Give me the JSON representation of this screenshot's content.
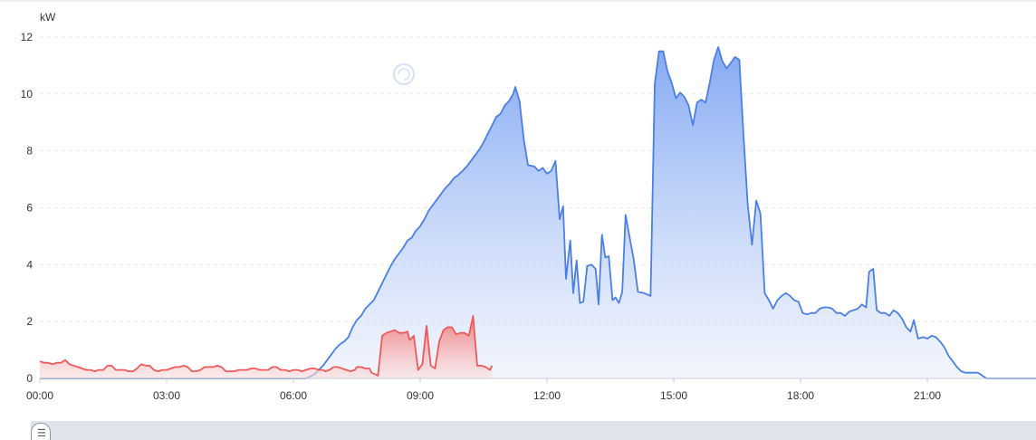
{
  "chart_data": {
    "type": "area",
    "ylabel": "kW",
    "ylim": [
      0,
      12
    ],
    "yticks": [
      "0",
      "2",
      "4",
      "6",
      "8",
      "10",
      "12"
    ],
    "xlim": [
      0,
      23.83
    ],
    "xticks": [
      {
        "label": "00:00",
        "value": 0
      },
      {
        "label": "03:00",
        "value": 3
      },
      {
        "label": "06:00",
        "value": 6
      },
      {
        "label": "09:00",
        "value": 9
      },
      {
        "label": "12:00",
        "value": 12
      },
      {
        "label": "15:00",
        "value": 15
      },
      {
        "label": "18:00",
        "value": 18
      },
      {
        "label": "21:00",
        "value": 21
      }
    ],
    "grid": true,
    "series": [
      {
        "color": "#4a7fe6",
        "points": [
          [
            0,
            0
          ],
          [
            6.3,
            0
          ],
          [
            6.5,
            0.15
          ],
          [
            6.7,
            0.45
          ],
          [
            6.8,
            0.65
          ],
          [
            6.9,
            0.85
          ],
          [
            7.0,
            1.05
          ],
          [
            7.1,
            1.2
          ],
          [
            7.2,
            1.3
          ],
          [
            7.3,
            1.45
          ],
          [
            7.4,
            1.8
          ],
          [
            7.5,
            2.05
          ],
          [
            7.6,
            2.2
          ],
          [
            7.7,
            2.45
          ],
          [
            7.8,
            2.6
          ],
          [
            7.9,
            2.75
          ],
          [
            8.0,
            3.05
          ],
          [
            8.1,
            3.35
          ],
          [
            8.2,
            3.65
          ],
          [
            8.3,
            3.95
          ],
          [
            8.4,
            4.2
          ],
          [
            8.5,
            4.4
          ],
          [
            8.6,
            4.6
          ],
          [
            8.7,
            4.85
          ],
          [
            8.8,
            4.95
          ],
          [
            8.9,
            5.2
          ],
          [
            9.0,
            5.35
          ],
          [
            9.1,
            5.6
          ],
          [
            9.2,
            5.9
          ],
          [
            9.3,
            6.1
          ],
          [
            9.4,
            6.3
          ],
          [
            9.5,
            6.5
          ],
          [
            9.6,
            6.7
          ],
          [
            9.7,
            6.85
          ],
          [
            9.8,
            7.05
          ],
          [
            9.9,
            7.15
          ],
          [
            10.0,
            7.3
          ],
          [
            10.1,
            7.45
          ],
          [
            10.2,
            7.65
          ],
          [
            10.3,
            7.85
          ],
          [
            10.4,
            8.05
          ],
          [
            10.5,
            8.3
          ],
          [
            10.6,
            8.6
          ],
          [
            10.7,
            8.9
          ],
          [
            10.8,
            9.2
          ],
          [
            10.9,
            9.3
          ],
          [
            11.0,
            9.6
          ],
          [
            11.1,
            9.75
          ],
          [
            11.2,
            10.0
          ],
          [
            11.25,
            10.25
          ],
          [
            11.35,
            9.75
          ],
          [
            11.45,
            8.4
          ],
          [
            11.55,
            7.5
          ],
          [
            11.7,
            7.45
          ],
          [
            11.8,
            7.3
          ],
          [
            11.9,
            7.4
          ],
          [
            12.0,
            7.2
          ],
          [
            12.1,
            7.3
          ],
          [
            12.2,
            7.65
          ],
          [
            12.3,
            5.6
          ],
          [
            12.38,
            6.05
          ],
          [
            12.45,
            3.5
          ],
          [
            12.55,
            4.85
          ],
          [
            12.62,
            3.0
          ],
          [
            12.7,
            4.15
          ],
          [
            12.78,
            2.65
          ],
          [
            12.86,
            2.7
          ],
          [
            12.95,
            3.95
          ],
          [
            13.05,
            4.0
          ],
          [
            13.15,
            3.85
          ],
          [
            13.22,
            2.6
          ],
          [
            13.3,
            5.05
          ],
          [
            13.38,
            4.25
          ],
          [
            13.46,
            4.3
          ],
          [
            13.55,
            2.75
          ],
          [
            13.62,
            2.85
          ],
          [
            13.7,
            2.65
          ],
          [
            13.78,
            3.05
          ],
          [
            13.86,
            5.75
          ],
          [
            13.95,
            5.0
          ],
          [
            14.05,
            4.2
          ],
          [
            14.15,
            3.05
          ],
          [
            14.3,
            3.0
          ],
          [
            14.45,
            2.9
          ],
          [
            14.55,
            10.35
          ],
          [
            14.65,
            11.5
          ],
          [
            14.75,
            11.5
          ],
          [
            14.85,
            10.8
          ],
          [
            14.95,
            10.4
          ],
          [
            15.05,
            9.85
          ],
          [
            15.15,
            10.05
          ],
          [
            15.25,
            9.9
          ],
          [
            15.35,
            9.6
          ],
          [
            15.45,
            8.9
          ],
          [
            15.55,
            9.7
          ],
          [
            15.65,
            9.8
          ],
          [
            15.75,
            9.7
          ],
          [
            15.85,
            10.4
          ],
          [
            15.95,
            11.2
          ],
          [
            16.05,
            11.65
          ],
          [
            16.15,
            11.15
          ],
          [
            16.25,
            10.9
          ],
          [
            16.35,
            11.1
          ],
          [
            16.45,
            11.3
          ],
          [
            16.55,
            11.2
          ],
          [
            16.65,
            8.5
          ],
          [
            16.75,
            6.1
          ],
          [
            16.85,
            4.7
          ],
          [
            16.95,
            6.25
          ],
          [
            17.05,
            5.8
          ],
          [
            17.15,
            3.0
          ],
          [
            17.25,
            2.75
          ],
          [
            17.35,
            2.45
          ],
          [
            17.45,
            2.75
          ],
          [
            17.55,
            2.9
          ],
          [
            17.65,
            3.0
          ],
          [
            17.75,
            2.9
          ],
          [
            17.85,
            2.75
          ],
          [
            17.95,
            2.7
          ],
          [
            18.05,
            2.3
          ],
          [
            18.15,
            2.25
          ],
          [
            18.25,
            2.3
          ],
          [
            18.35,
            2.3
          ],
          [
            18.45,
            2.45
          ],
          [
            18.55,
            2.5
          ],
          [
            18.65,
            2.5
          ],
          [
            18.75,
            2.45
          ],
          [
            18.85,
            2.3
          ],
          [
            18.95,
            2.3
          ],
          [
            19.05,
            2.2
          ],
          [
            19.15,
            2.35
          ],
          [
            19.25,
            2.4
          ],
          [
            19.35,
            2.45
          ],
          [
            19.45,
            2.6
          ],
          [
            19.55,
            2.5
          ],
          [
            19.62,
            3.75
          ],
          [
            19.72,
            3.85
          ],
          [
            19.8,
            2.4
          ],
          [
            19.9,
            2.3
          ],
          [
            20.0,
            2.3
          ],
          [
            20.1,
            2.2
          ],
          [
            20.2,
            2.4
          ],
          [
            20.3,
            2.3
          ],
          [
            20.4,
            2.1
          ],
          [
            20.5,
            1.8
          ],
          [
            20.6,
            1.65
          ],
          [
            20.68,
            2.05
          ],
          [
            20.78,
            1.4
          ],
          [
            20.9,
            1.45
          ],
          [
            21.0,
            1.4
          ],
          [
            21.1,
            1.5
          ],
          [
            21.2,
            1.45
          ],
          [
            21.3,
            1.3
          ],
          [
            21.4,
            1.1
          ],
          [
            21.5,
            0.8
          ],
          [
            21.6,
            0.6
          ],
          [
            21.7,
            0.4
          ],
          [
            21.8,
            0.25
          ],
          [
            21.9,
            0.2
          ],
          [
            22.0,
            0.2
          ],
          [
            22.2,
            0.2
          ],
          [
            22.3,
            0.1
          ],
          [
            22.4,
            0
          ],
          [
            23.83,
            0
          ]
        ]
      },
      {
        "color": "#ee5a5a",
        "points": [
          [
            0,
            0.6
          ],
          [
            0.1,
            0.55
          ],
          [
            0.2,
            0.55
          ],
          [
            0.3,
            0.5
          ],
          [
            0.4,
            0.55
          ],
          [
            0.5,
            0.55
          ],
          [
            0.6,
            0.65
          ],
          [
            0.7,
            0.5
          ],
          [
            0.8,
            0.45
          ],
          [
            0.9,
            0.4
          ],
          [
            1.0,
            0.35
          ],
          [
            1.1,
            0.3
          ],
          [
            1.2,
            0.3
          ],
          [
            1.3,
            0.25
          ],
          [
            1.4,
            0.3
          ],
          [
            1.5,
            0.3
          ],
          [
            1.6,
            0.45
          ],
          [
            1.7,
            0.45
          ],
          [
            1.8,
            0.3
          ],
          [
            1.9,
            0.3
          ],
          [
            2.0,
            0.3
          ],
          [
            2.1,
            0.25
          ],
          [
            2.2,
            0.25
          ],
          [
            2.3,
            0.35
          ],
          [
            2.4,
            0.5
          ],
          [
            2.5,
            0.45
          ],
          [
            2.6,
            0.45
          ],
          [
            2.7,
            0.3
          ],
          [
            2.8,
            0.25
          ],
          [
            2.9,
            0.3
          ],
          [
            3.0,
            0.3
          ],
          [
            3.1,
            0.35
          ],
          [
            3.2,
            0.4
          ],
          [
            3.3,
            0.4
          ],
          [
            3.4,
            0.45
          ],
          [
            3.5,
            0.4
          ],
          [
            3.6,
            0.25
          ],
          [
            3.7,
            0.25
          ],
          [
            3.8,
            0.3
          ],
          [
            3.9,
            0.4
          ],
          [
            4.0,
            0.4
          ],
          [
            4.1,
            0.4
          ],
          [
            4.2,
            0.45
          ],
          [
            4.3,
            0.4
          ],
          [
            4.4,
            0.25
          ],
          [
            4.5,
            0.25
          ],
          [
            4.6,
            0.25
          ],
          [
            4.7,
            0.3
          ],
          [
            4.8,
            0.3
          ],
          [
            4.9,
            0.3
          ],
          [
            5.0,
            0.35
          ],
          [
            5.1,
            0.35
          ],
          [
            5.2,
            0.3
          ],
          [
            5.3,
            0.3
          ],
          [
            5.4,
            0.3
          ],
          [
            5.5,
            0.4
          ],
          [
            5.6,
            0.4
          ],
          [
            5.7,
            0.3
          ],
          [
            5.8,
            0.3
          ],
          [
            5.9,
            0.25
          ],
          [
            6.0,
            0.3
          ],
          [
            6.1,
            0.3
          ],
          [
            6.2,
            0.25
          ],
          [
            6.3,
            0.3
          ],
          [
            6.4,
            0.35
          ],
          [
            6.5,
            0.35
          ],
          [
            6.6,
            0.3
          ],
          [
            6.7,
            0.3
          ],
          [
            6.75,
            0.25
          ],
          [
            6.85,
            0.3
          ],
          [
            6.95,
            0.4
          ],
          [
            7.05,
            0.4
          ],
          [
            7.15,
            0.35
          ],
          [
            7.25,
            0.3
          ],
          [
            7.35,
            0.25
          ],
          [
            7.45,
            0.3
          ],
          [
            7.5,
            0.4
          ],
          [
            7.6,
            0.4
          ],
          [
            7.7,
            0.35
          ],
          [
            7.8,
            0.35
          ],
          [
            7.85,
            0.2
          ],
          [
            8.0,
            0.1
          ],
          [
            8.1,
            1.5
          ],
          [
            8.2,
            1.6
          ],
          [
            8.3,
            1.65
          ],
          [
            8.4,
            1.7
          ],
          [
            8.5,
            1.6
          ],
          [
            8.6,
            1.6
          ],
          [
            8.7,
            1.65
          ],
          [
            8.75,
            1.35
          ],
          [
            8.85,
            1.5
          ],
          [
            8.95,
            0.3
          ],
          [
            9.05,
            0.5
          ],
          [
            9.15,
            1.85
          ],
          [
            9.25,
            0.45
          ],
          [
            9.35,
            0.35
          ],
          [
            9.45,
            1.3
          ],
          [
            9.55,
            1.7
          ],
          [
            9.65,
            1.8
          ],
          [
            9.75,
            1.8
          ],
          [
            9.85,
            1.55
          ],
          [
            9.95,
            1.6
          ],
          [
            10.05,
            1.6
          ],
          [
            10.15,
            1.5
          ],
          [
            10.25,
            2.2
          ],
          [
            10.35,
            0.45
          ],
          [
            10.45,
            0.45
          ],
          [
            10.55,
            0.4
          ],
          [
            10.65,
            0.3
          ],
          [
            10.7,
            0.45
          ]
        ]
      }
    ]
  }
}
